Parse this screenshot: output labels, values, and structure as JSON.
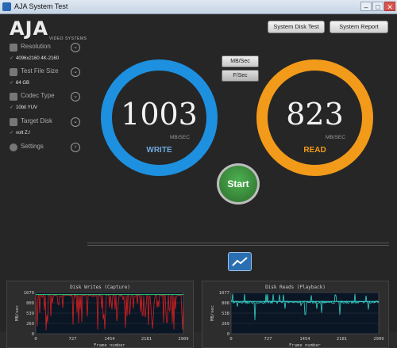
{
  "window": {
    "title": "AJA System Test"
  },
  "logo": {
    "word": "AJA",
    "sub": "VIDEO SYSTEMS"
  },
  "sidebar": {
    "items": [
      {
        "label": "Resolution",
        "value": "4096x2160 4K-2160",
        "icon": "resolution-icon"
      },
      {
        "label": "Test File Size",
        "value": "64 GB",
        "icon": "stack-icon"
      },
      {
        "label": "Codec Type",
        "value": "10bit YUV",
        "icon": "film-icon"
      },
      {
        "label": "Target Disk",
        "value": "volt Z:/",
        "icon": "disk-icon"
      },
      {
        "label": "Settings",
        "value": "",
        "icon": "gear-icon"
      }
    ]
  },
  "top_buttons": {
    "disk_test": "System Disk Test",
    "report": "System Report"
  },
  "units": {
    "mbsec": "MB/Sec",
    "fsec": "F/Sec"
  },
  "write": {
    "value": "1003",
    "unit": "MB/SEC",
    "label": "WRITE",
    "color": "#1e90e0"
  },
  "read": {
    "value": "823",
    "unit": "MB/SEC",
    "label": "READ",
    "color": "#f29a1a"
  },
  "start_label": "Start",
  "charts": [
    {
      "title": "Disk Writes (Capture)",
      "ylabel": "MB/sec",
      "xlabel": "Frame number",
      "yticks": [
        "1079",
        "809",
        "539",
        "269",
        "0"
      ],
      "xticks": [
        "0",
        "727",
        "1454",
        "2181",
        "2909"
      ],
      "line_color": "#d62020",
      "avg_color": "#2fd07a",
      "ylim": [
        0,
        1079
      ],
      "xlim": [
        0,
        2909
      ],
      "baseline": 1003
    },
    {
      "title": "Disk Reads (Playback)",
      "ylabel": "MB/sec",
      "xlabel": "Frame number",
      "yticks": [
        "1077",
        "808",
        "538",
        "269",
        "0"
      ],
      "xticks": [
        "0",
        "727",
        "1454",
        "2181",
        "2909"
      ],
      "line_color": "#36d0c8",
      "avg_color": "#36d0c8",
      "ylim": [
        0,
        1077
      ],
      "xlim": [
        0,
        2909
      ],
      "baseline": 823
    }
  ]
}
